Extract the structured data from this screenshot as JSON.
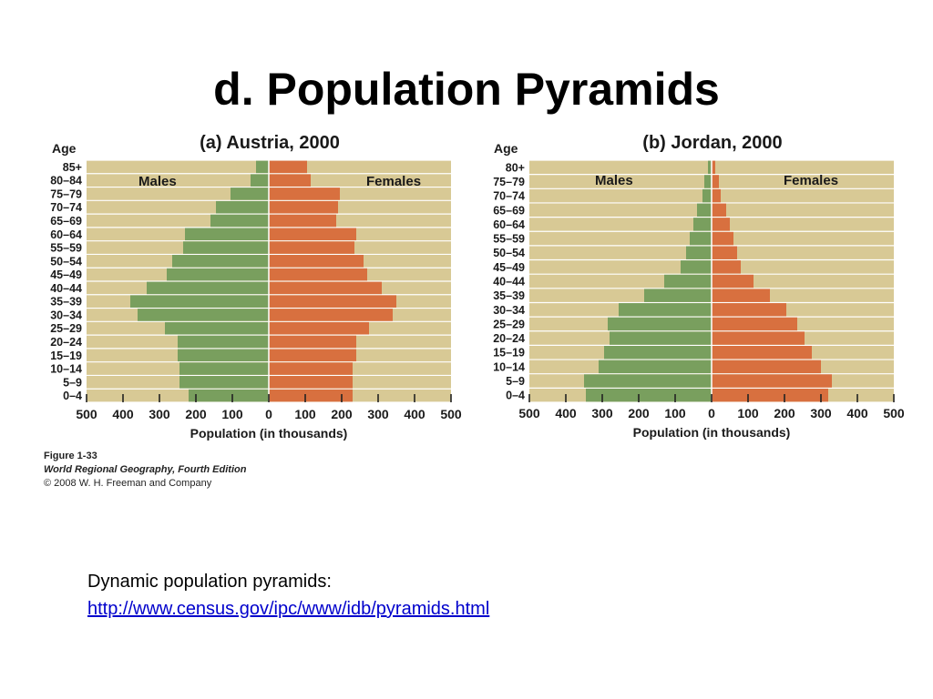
{
  "slide": {
    "title": "d. Population Pyramids",
    "caption": {
      "figure": "Figure 1-33",
      "book": "World Regional Geography, Fourth Edition",
      "copyright": "© 2008 W. H. Freeman and Company"
    },
    "note": {
      "text": "Dynamic population pyramids:",
      "link": "http://www.census.gov/ipc/www/idb/pyramids.html"
    }
  },
  "colors": {
    "male": "#799f5e",
    "female": "#d8703f",
    "background": "#d8c995",
    "grid": "#ffffff",
    "tick": "#222222"
  },
  "chart_data": [
    {
      "type": "bar",
      "orientation": "horizontal-pyramid",
      "title": "(a) Austria, 2000",
      "age_axis_label": "Age",
      "xlabel": "Population (in thousands)",
      "categories": [
        "85+",
        "80–84",
        "75–79",
        "70–74",
        "65–69",
        "60–64",
        "55–59",
        "50–54",
        "45–49",
        "40–44",
        "35–39",
        "30–34",
        "25–29",
        "20–24",
        "15–19",
        "10–14",
        "5–9",
        "0–4"
      ],
      "series": [
        {
          "name": "Males",
          "values": [
            35,
            50,
            105,
            145,
            160,
            230,
            235,
            265,
            280,
            335,
            380,
            360,
            285,
            250,
            250,
            245,
            245,
            220
          ]
        },
        {
          "name": "Females",
          "values": [
            105,
            115,
            195,
            190,
            185,
            240,
            235,
            260,
            270,
            310,
            350,
            340,
            275,
            240,
            240,
            230,
            230,
            230
          ]
        }
      ],
      "xlim": [
        -500,
        500
      ],
      "ticks": [
        -500,
        -400,
        -300,
        -200,
        -100,
        0,
        100,
        200,
        300,
        400,
        500
      ],
      "tick_labels": [
        "500",
        "400",
        "300",
        "200",
        "100",
        "0",
        "100",
        "200",
        "300",
        "400",
        "500"
      ],
      "grid": true
    },
    {
      "type": "bar",
      "orientation": "horizontal-pyramid",
      "title": "(b) Jordan, 2000",
      "age_axis_label": "Age",
      "xlabel": "Population (in thousands)",
      "categories": [
        "80+",
        "75–79",
        "70–74",
        "65–69",
        "60–64",
        "55–59",
        "50–54",
        "45–49",
        "40–44",
        "35–39",
        "30–34",
        "25–29",
        "20–24",
        "15–19",
        "10–14",
        "5–9",
        "0–4"
      ],
      "series": [
        {
          "name": "Males",
          "values": [
            10,
            20,
            25,
            40,
            50,
            60,
            70,
            85,
            130,
            185,
            255,
            285,
            280,
            295,
            310,
            350,
            345
          ]
        },
        {
          "name": "Females",
          "values": [
            10,
            20,
            25,
            40,
            50,
            60,
            70,
            80,
            115,
            160,
            205,
            235,
            255,
            275,
            300,
            330,
            320
          ]
        }
      ],
      "xlim": [
        -500,
        500
      ],
      "ticks": [
        -500,
        -400,
        -300,
        -200,
        -100,
        0,
        100,
        200,
        300,
        400,
        500
      ],
      "tick_labels": [
        "500",
        "400",
        "300",
        "200",
        "100",
        "0",
        "100",
        "200",
        "300",
        "400",
        "500"
      ],
      "grid": true
    }
  ]
}
